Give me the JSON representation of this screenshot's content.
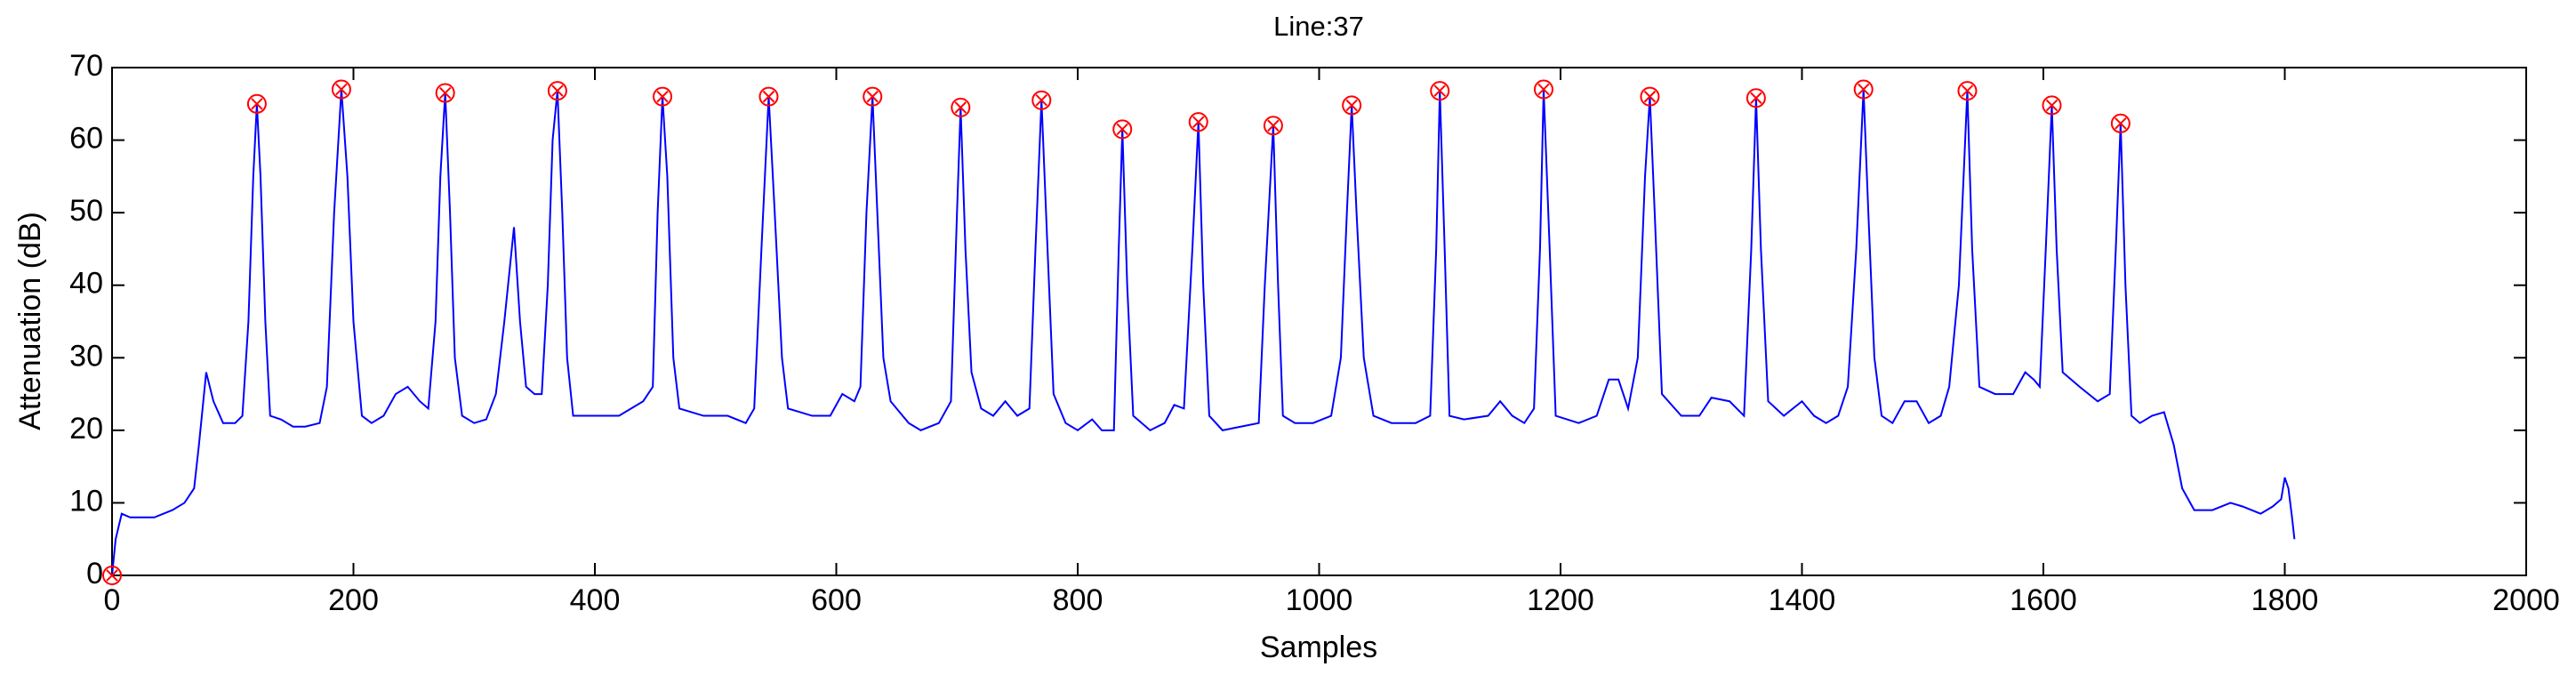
{
  "chart_data": {
    "type": "line",
    "title": "Line:37",
    "xlabel": "Samples",
    "ylabel": "Attenuation (dB)",
    "xlim": [
      0,
      2000
    ],
    "xticks": [
      0,
      200,
      400,
      600,
      800,
      1000,
      1200,
      1400,
      1600,
      1800,
      2000
    ],
    "ylim": [
      0,
      70
    ],
    "yticks": [
      0,
      10,
      20,
      30,
      40,
      50,
      60,
      70
    ],
    "grid": false,
    "series": [
      {
        "type": "line",
        "color": "#0000ff",
        "x": [
          0,
          3,
          8,
          15,
          35,
          50,
          60,
          68,
          72,
          78,
          84,
          92,
          102,
          108,
          113,
          117,
          120,
          123,
          127,
          131,
          140,
          150,
          160,
          172,
          178,
          184,
          190,
          195,
          200,
          207,
          215,
          225,
          235,
          245,
          255,
          262,
          268,
          272,
          276,
          280,
          284,
          290,
          300,
          310,
          318,
          325,
          333,
          338,
          343,
          350,
          356,
          361,
          365,
          369,
          373,
          377,
          382,
          400,
          420,
          430,
          440,
          448,
          452,
          456,
          460,
          465,
          470,
          490,
          510,
          525,
          532,
          538,
          544,
          549,
          555,
          560,
          580,
          595,
          605,
          615,
          620,
          625,
          630,
          634,
          639,
          645,
          660,
          670,
          685,
          695,
          700,
          703,
          707,
          712,
          720,
          730,
          740,
          750,
          760,
          765,
          770,
          775,
          780,
          790,
          800,
          812,
          820,
          830,
          834,
          837,
          841,
          846,
          860,
          872,
          880,
          888,
          895,
          900,
          904,
          909,
          920,
          935,
          950,
          955,
          962,
          966,
          970,
          980,
          995,
          1010,
          1018,
          1023,
          1027,
          1031,
          1037,
          1045,
          1060,
          1080,
          1092,
          1097,
          1100,
          1104,
          1108,
          1120,
          1140,
          1150,
          1160,
          1170,
          1178,
          1183,
          1186,
          1191,
          1196,
          1215,
          1230,
          1240,
          1248,
          1256,
          1264,
          1270,
          1274,
          1278,
          1284,
          1300,
          1315,
          1325,
          1340,
          1352,
          1358,
          1362,
          1366,
          1372,
          1385,
          1400,
          1410,
          1420,
          1430,
          1438,
          1445,
          1451,
          1455,
          1460,
          1466,
          1475,
          1485,
          1495,
          1505,
          1515,
          1522,
          1530,
          1537,
          1541,
          1547,
          1560,
          1575,
          1585,
          1592,
          1597,
          1602,
          1607,
          1611,
          1616,
          1630,
          1645,
          1655,
          1660,
          1664,
          1668,
          1673,
          1680,
          1690,
          1700,
          1708,
          1715,
          1725,
          1740,
          1755,
          1765,
          1780,
          1790,
          1797,
          1800,
          1803,
          1806,
          1808
        ],
        "values": [
          0,
          5,
          8.5,
          8,
          8,
          9,
          10,
          12,
          18,
          28,
          24,
          21,
          21,
          22,
          35,
          55,
          65,
          55,
          35,
          22,
          21.5,
          20.5,
          20.5,
          21,
          26,
          50,
          67,
          55,
          35,
          22,
          21,
          22,
          25,
          26,
          24,
          23,
          35,
          55,
          66.5,
          50,
          30,
          22,
          21,
          21.5,
          25,
          35,
          48,
          35,
          26,
          25,
          25,
          40,
          60,
          66.8,
          50,
          30,
          22,
          22,
          22,
          23,
          24,
          26,
          50,
          66,
          55,
          30,
          23,
          22,
          22,
          21,
          23,
          45,
          66,
          50,
          30,
          23,
          22,
          22,
          25,
          24,
          26,
          50,
          66,
          50,
          30,
          24,
          21,
          20,
          21,
          24,
          50,
          64.5,
          45,
          28,
          23,
          22,
          24,
          22,
          23,
          45,
          65.5,
          45,
          25,
          21,
          20,
          21.5,
          20,
          20,
          45,
          61.5,
          40,
          22,
          20,
          21,
          23.5,
          23,
          45,
          62.5,
          40,
          22,
          20,
          20.5,
          21,
          40,
          62,
          40,
          22,
          21,
          21,
          22,
          30,
          50,
          64.8,
          50,
          30,
          22,
          21,
          21,
          22,
          45,
          66.8,
          45,
          22,
          21.5,
          22,
          24,
          22,
          21,
          23,
          45,
          67,
          45,
          22,
          21,
          22,
          27,
          27,
          23,
          30,
          55,
          66,
          50,
          25,
          22,
          22,
          24.5,
          24,
          22,
          45,
          65.8,
          45,
          24,
          22,
          24,
          22,
          21,
          22,
          26,
          45,
          67,
          50,
          30,
          22,
          21,
          24,
          24,
          21,
          22,
          26,
          40,
          66.8,
          45,
          26,
          25,
          25,
          28,
          27,
          26,
          45,
          64.8,
          45,
          28,
          26,
          24,
          25,
          45,
          62.3,
          40,
          22,
          21,
          22,
          22.5,
          18,
          12,
          9,
          9,
          10,
          9.5,
          8.5,
          9.5,
          10.5,
          13.5,
          12,
          8,
          5
        ]
      },
      {
        "type": "scatter",
        "color": "#ff0000",
        "x": [
          0,
          120,
          190,
          276,
          369,
          456,
          544,
          630,
          703,
          770,
          837,
          900,
          962,
          1027,
          1100,
          1186,
          1274,
          1362,
          1451,
          1537,
          1607,
          1664
        ],
        "values": [
          0,
          65,
          67,
          66.5,
          66.8,
          66,
          66,
          66,
          64.5,
          65.5,
          61.5,
          62.5,
          62,
          64.8,
          66.8,
          67,
          66,
          65.8,
          67,
          66.8,
          64.8,
          62.3
        ]
      }
    ]
  }
}
